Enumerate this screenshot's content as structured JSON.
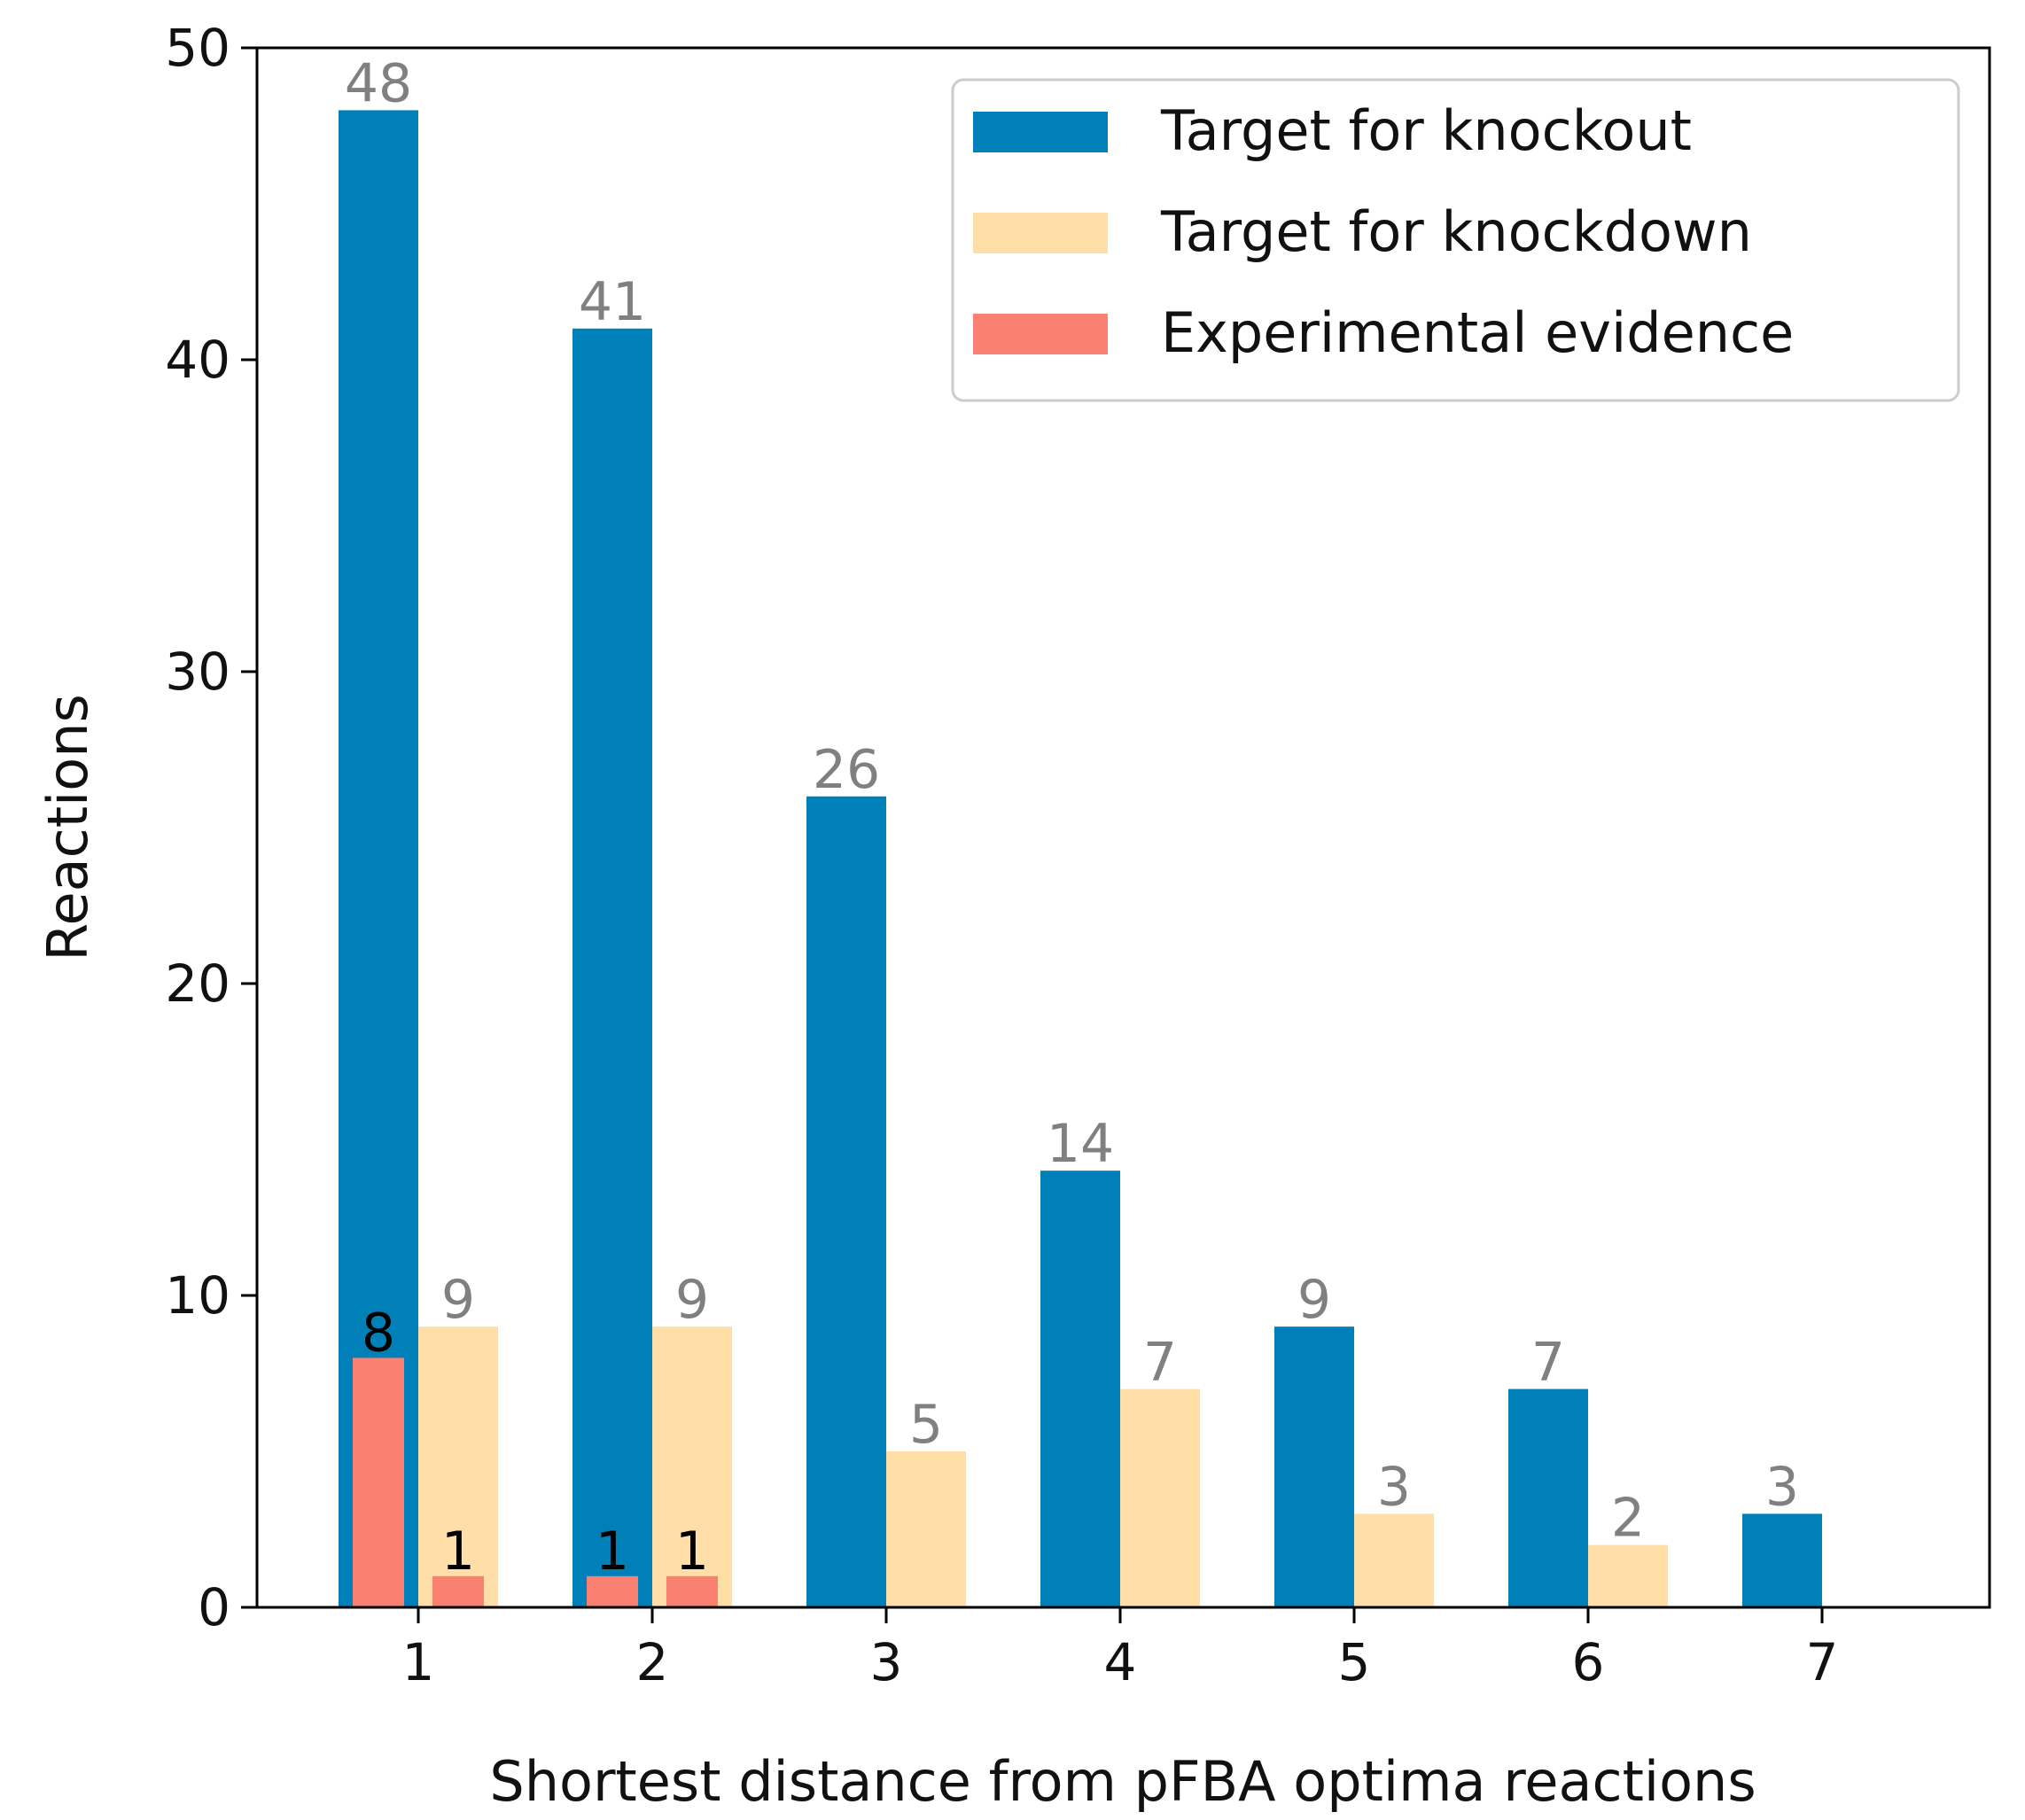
{
  "chart_data": {
    "type": "bar",
    "title": "",
    "xlabel": "Shortest distance from pFBA optima reactions",
    "ylabel": "Reactions",
    "categories": [
      "1",
      "2",
      "3",
      "4",
      "5",
      "6",
      "7"
    ],
    "ylim": [
      0,
      50
    ],
    "yticks": [
      0,
      10,
      20,
      30,
      40,
      50
    ],
    "grid": false,
    "legend_position": "top-right",
    "series": [
      {
        "name": "Target for knockout",
        "color": "#0080b8",
        "label_color": "#808080",
        "values": [
          48,
          41,
          26,
          14,
          9,
          7,
          3
        ]
      },
      {
        "name": "Target for knockdown",
        "color": "#ffdea8",
        "label_color": "#808080",
        "values": [
          9,
          9,
          5,
          7,
          3,
          2,
          0
        ]
      }
    ],
    "evidence": {
      "name": "Experimental evidence",
      "color": "#fa8072",
      "label_color": "#000000",
      "points": [
        {
          "category": "1",
          "over": "Target for knockout",
          "value": 8
        },
        {
          "category": "1",
          "over": "Target for knockdown",
          "value": 1
        },
        {
          "category": "2",
          "over": "Target for knockout",
          "value": 1
        },
        {
          "category": "2",
          "over": "Target for knockdown",
          "value": 1
        }
      ]
    }
  }
}
